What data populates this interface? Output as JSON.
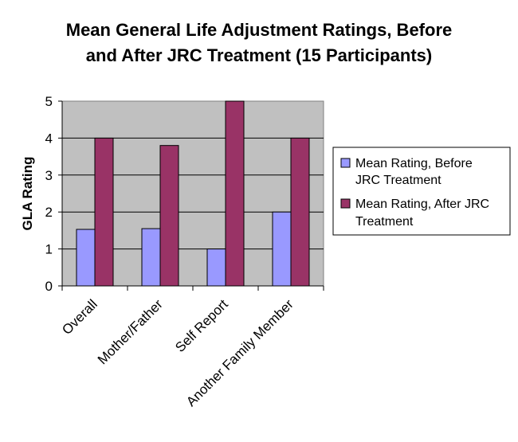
{
  "chart_data": {
    "type": "bar",
    "title": [
      "Mean General Life Adjustment Ratings, Before",
      "and After JRC Treatment (15 Participants)"
    ],
    "ylabel": "GLA Rating",
    "xlabel": "",
    "categories": [
      "Overall",
      "Mother/Father",
      "Self Report",
      "Another Family Member"
    ],
    "series": [
      {
        "name_lines": [
          "Mean Rating, Before",
          "JRC Treatment"
        ],
        "color": "#9999FF",
        "values": [
          1.53,
          1.55,
          1.0,
          2.0
        ]
      },
      {
        "name_lines": [
          "Mean Rating, After JRC",
          "Treatment"
        ],
        "color": "#993366",
        "values": [
          4.0,
          3.8,
          5.0,
          4.0
        ]
      }
    ],
    "ylim": [
      0,
      5
    ],
    "yticks": [
      "0",
      "1",
      "2",
      "3",
      "4",
      "5"
    ],
    "grid": true,
    "plot_background": "#C0C0C0",
    "legend_position": "right"
  }
}
